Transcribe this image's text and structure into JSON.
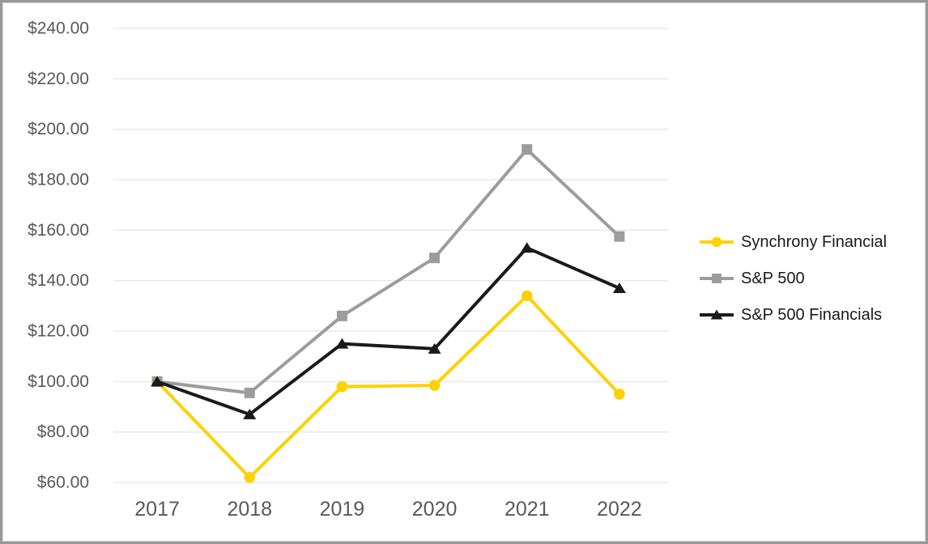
{
  "chart_data": {
    "type": "line",
    "title": "",
    "xlabel": "",
    "ylabel": "",
    "categories": [
      "2017",
      "2018",
      "2019",
      "2020",
      "2021",
      "2022"
    ],
    "series": [
      {
        "name": "Synchrony Financial",
        "marker": "circle",
        "color": "#FFD100",
        "values": [
          100.0,
          62.0,
          98.0,
          98.5,
          134.0,
          95.0
        ]
      },
      {
        "name": "S&P 500",
        "marker": "square",
        "color": "#9C9C9C",
        "values": [
          100.0,
          95.5,
          126.0,
          149.0,
          192.0,
          157.5
        ]
      },
      {
        "name": "S&P 500 Financials",
        "marker": "triangle",
        "color": "#1A1A1A",
        "values": [
          100.0,
          87.0,
          115.0,
          113.0,
          153.0,
          137.0
        ]
      }
    ],
    "ylim": [
      60,
      240
    ],
    "yticks": [
      {
        "value": 60,
        "label": "$60.00"
      },
      {
        "value": 80,
        "label": "$80.00"
      },
      {
        "value": 100,
        "label": "$100.00"
      },
      {
        "value": 120,
        "label": "$120.00"
      },
      {
        "value": 140,
        "label": "$140.00"
      },
      {
        "value": 160,
        "label": "$160.00"
      },
      {
        "value": 180,
        "label": "$180.00"
      },
      {
        "value": 200,
        "label": "$200.00"
      },
      {
        "value": 220,
        "label": "$220.00"
      },
      {
        "value": 240,
        "label": "$240.00"
      }
    ],
    "grid": true,
    "legend_position": "right"
  },
  "colors": {
    "background": "#FFFFFF",
    "gridline": "#E8E8E8",
    "axis_text": "#595959",
    "legend_text": "#1A1A1A",
    "frame_border": "#9A9A9A"
  }
}
